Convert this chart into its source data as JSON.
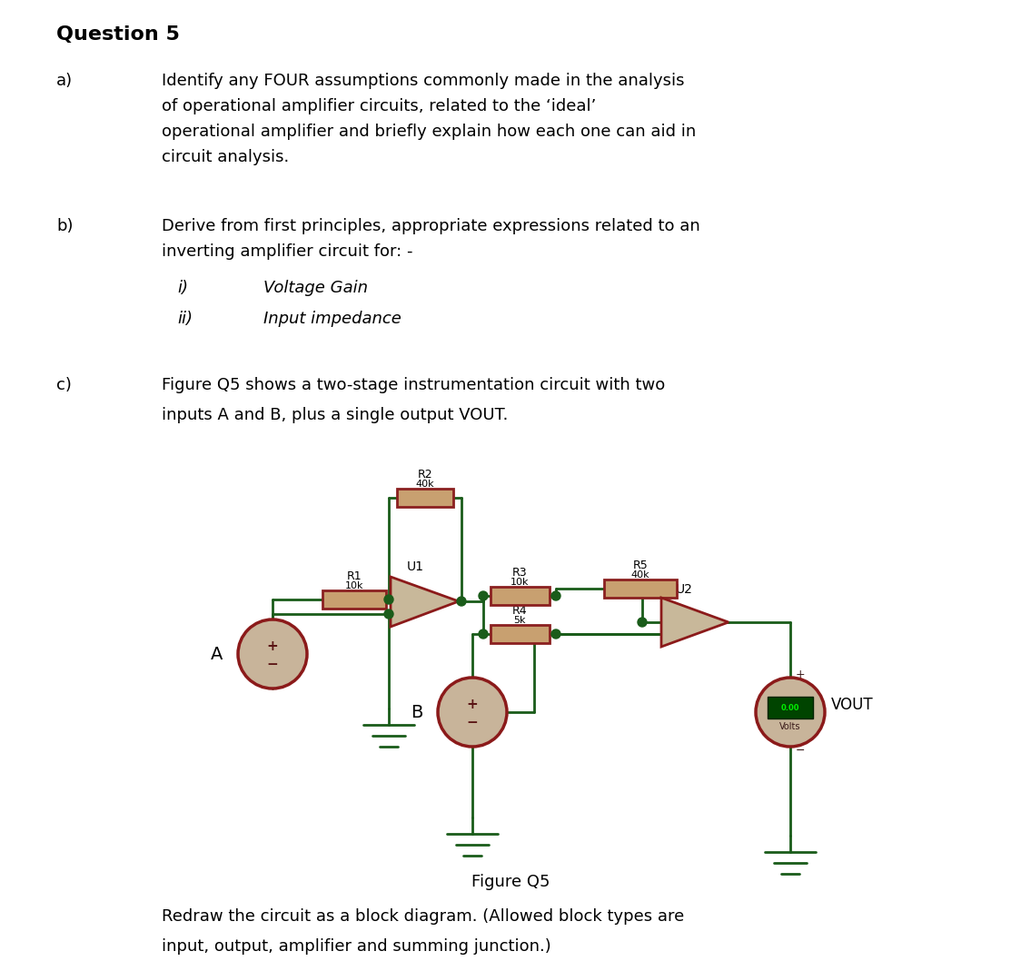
{
  "page_bg": "#ffffff",
  "text_color": "#000000",
  "wire_color": "#1a5c1a",
  "resistor_fill": "#c8a070",
  "resistor_border": "#8b2020",
  "op_amp_fill": "#c8b89a",
  "op_amp_border": "#8b1a1a",
  "source_fill": "#c8b49a",
  "source_border": "#8b1a1a",
  "dot_color": "#1a5c1a",
  "title": "Question 5",
  "label_a": "a)",
  "text_a1": "Identify any FOUR assumptions commonly made in the analysis",
  "text_a2": "of operational amplifier circuits, related to the ‘ideal’",
  "text_a3": "operational amplifier and briefly explain how each one can aid in",
  "text_a4": "circuit analysis.",
  "label_b": "b)",
  "text_b1": "Derive from first principles, appropriate expressions related to an",
  "text_b2": "inverting amplifier circuit for: -",
  "text_bi": "i)",
  "text_bii": "ii)",
  "text_voltage": "Voltage Gain",
  "text_input": "Input impedance",
  "label_c": "c)",
  "text_c1": "Figure Q5 shows a two-stage instrumentation circuit with two",
  "text_c2": "inputs A and B, plus a single output VOUT.",
  "fig_caption": "Figure Q5",
  "redraw1": "Redraw the circuit as a block diagram. (Allowed block types are",
  "redraw2": "input, output, amplifier and summing junction.)"
}
